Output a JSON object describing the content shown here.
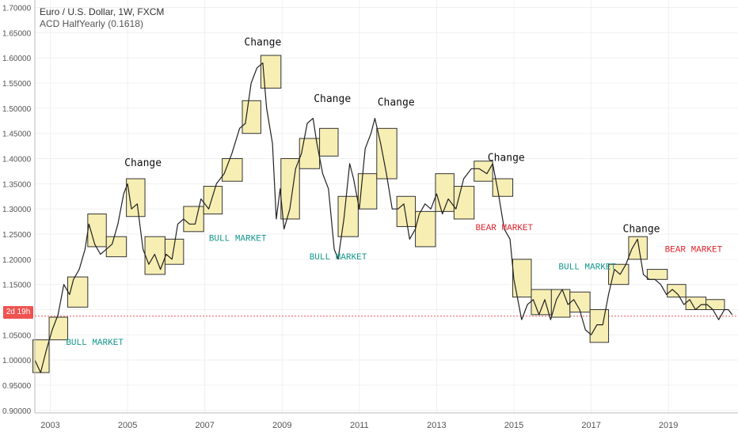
{
  "legend": {
    "title": "Euro / U.S. Dollar, 1W, FXCM",
    "indicator": "ACD HalfYearly (0.1618)"
  },
  "countdown": "2d 19h",
  "colors": {
    "box_fill": "#f7eeb4",
    "box_stroke": "#333333",
    "line": "#222222",
    "bull_text": "#12968c",
    "bear_text": "#e0242c",
    "change_text": "#111111",
    "current_line": "#ef5350",
    "grid": "#f0f0f0",
    "axis_text": "#555555"
  },
  "chart_data": {
    "type": "line",
    "title": "Euro / U.S. Dollar, 1W, FXCM",
    "xlim": [
      2002.6,
      2020.8
    ],
    "ylim": [
      0.895,
      1.715
    ],
    "y_ticks": [
      "0.90000",
      "0.95000",
      "1.00000",
      "1.05000",
      "1.10000",
      "1.15000",
      "1.20000",
      "1.25000",
      "1.30000",
      "1.35000",
      "1.40000",
      "1.45000",
      "1.50000",
      "1.55000",
      "1.60000",
      "1.65000",
      "1.70000"
    ],
    "x_ticks": [
      "2003",
      "2005",
      "2007",
      "2009",
      "2011",
      "2013",
      "2015",
      "2017",
      "2019"
    ],
    "current_price": 1.087,
    "series": [
      {
        "x": [
          2002.6,
          2002.75,
          2002.9,
          2003.05,
          2003.2,
          2003.35,
          2003.5,
          2003.6,
          2003.75,
          2003.9,
          2004.0,
          2004.15,
          2004.3,
          2004.45,
          2004.6,
          2004.75,
          2004.9,
          2005.0,
          2005.1,
          2005.25,
          2005.4,
          2005.55,
          2005.7,
          2005.85,
          2006.0,
          2006.15,
          2006.3,
          2006.45,
          2006.6,
          2006.75,
          2006.9,
          2007.1,
          2007.3,
          2007.5,
          2007.7,
          2007.9,
          2008.05,
          2008.2,
          2008.35,
          2008.5,
          2008.6,
          2008.75,
          2008.85,
          2008.95,
          2009.05,
          2009.2,
          2009.35,
          2009.5,
          2009.65,
          2009.8,
          2009.9,
          2010.05,
          2010.2,
          2010.35,
          2010.45,
          2010.6,
          2010.75,
          2010.85,
          2011.0,
          2011.15,
          2011.3,
          2011.4,
          2011.55,
          2011.7,
          2011.85,
          2012.0,
          2012.15,
          2012.3,
          2012.45,
          2012.55,
          2012.7,
          2012.85,
          2013.0,
          2013.15,
          2013.3,
          2013.5,
          2013.7,
          2013.9,
          2014.1,
          2014.3,
          2014.45,
          2014.6,
          2014.75,
          2014.9,
          2015.0,
          2015.1,
          2015.2,
          2015.35,
          2015.5,
          2015.65,
          2015.8,
          2015.95,
          2016.1,
          2016.25,
          2016.4,
          2016.55,
          2016.7,
          2016.85,
          2017.0,
          2017.15,
          2017.3,
          2017.45,
          2017.6,
          2017.75,
          2017.9,
          2018.05,
          2018.2,
          2018.35,
          2018.5,
          2018.65,
          2018.8,
          2018.95,
          2019.1,
          2019.25,
          2019.4,
          2019.55,
          2019.7,
          2019.85,
          2020.0,
          2020.15,
          2020.3,
          2020.45,
          2020.55,
          2020.65
        ],
        "y": [
          1.0,
          0.975,
          1.02,
          1.06,
          1.09,
          1.15,
          1.13,
          1.16,
          1.18,
          1.22,
          1.27,
          1.23,
          1.21,
          1.22,
          1.23,
          1.27,
          1.33,
          1.35,
          1.3,
          1.31,
          1.22,
          1.19,
          1.21,
          1.18,
          1.21,
          1.2,
          1.27,
          1.28,
          1.27,
          1.27,
          1.32,
          1.3,
          1.35,
          1.37,
          1.41,
          1.46,
          1.47,
          1.55,
          1.58,
          1.59,
          1.5,
          1.43,
          1.28,
          1.34,
          1.26,
          1.3,
          1.38,
          1.41,
          1.47,
          1.48,
          1.43,
          1.37,
          1.34,
          1.22,
          1.2,
          1.28,
          1.39,
          1.36,
          1.3,
          1.42,
          1.45,
          1.48,
          1.43,
          1.37,
          1.3,
          1.3,
          1.31,
          1.24,
          1.26,
          1.29,
          1.31,
          1.3,
          1.33,
          1.29,
          1.32,
          1.3,
          1.36,
          1.38,
          1.38,
          1.37,
          1.39,
          1.33,
          1.26,
          1.24,
          1.16,
          1.12,
          1.08,
          1.11,
          1.12,
          1.09,
          1.12,
          1.08,
          1.12,
          1.14,
          1.11,
          1.12,
          1.1,
          1.06,
          1.05,
          1.07,
          1.07,
          1.13,
          1.18,
          1.17,
          1.19,
          1.22,
          1.24,
          1.17,
          1.16,
          1.16,
          1.15,
          1.13,
          1.14,
          1.13,
          1.11,
          1.12,
          1.1,
          1.11,
          1.11,
          1.1,
          1.08,
          1.1,
          1.1,
          1.09
        ]
      }
    ],
    "boxes": [
      {
        "x0": 2002.55,
        "x1": 2002.97,
        "y0": 0.975,
        "y1": 1.04
      },
      {
        "x0": 2002.97,
        "x1": 2003.45,
        "y0": 1.04,
        "y1": 1.085
      },
      {
        "x0": 2003.45,
        "x1": 2003.97,
        "y0": 1.105,
        "y1": 1.165
      },
      {
        "x0": 2003.97,
        "x1": 2004.45,
        "y0": 1.225,
        "y1": 1.29
      },
      {
        "x0": 2004.45,
        "x1": 2004.97,
        "y0": 1.205,
        "y1": 1.245
      },
      {
        "x0": 2004.97,
        "x1": 2005.45,
        "y0": 1.285,
        "y1": 1.36
      },
      {
        "x0": 2005.45,
        "x1": 2005.97,
        "y0": 1.17,
        "y1": 1.245
      },
      {
        "x0": 2005.97,
        "x1": 2006.45,
        "y0": 1.19,
        "y1": 1.24
      },
      {
        "x0": 2006.45,
        "x1": 2006.97,
        "y0": 1.255,
        "y1": 1.305
      },
      {
        "x0": 2006.97,
        "x1": 2007.45,
        "y0": 1.29,
        "y1": 1.345
      },
      {
        "x0": 2007.45,
        "x1": 2007.97,
        "y0": 1.355,
        "y1": 1.4
      },
      {
        "x0": 2007.97,
        "x1": 2008.45,
        "y0": 1.45,
        "y1": 1.515
      },
      {
        "x0": 2008.45,
        "x1": 2008.97,
        "y0": 1.54,
        "y1": 1.605
      },
      {
        "x0": 2008.97,
        "x1": 2009.45,
        "y0": 1.28,
        "y1": 1.4
      },
      {
        "x0": 2009.45,
        "x1": 2009.97,
        "y0": 1.38,
        "y1": 1.44
      },
      {
        "x0": 2009.97,
        "x1": 2010.45,
        "y0": 1.405,
        "y1": 1.46
      },
      {
        "x0": 2010.45,
        "x1": 2010.97,
        "y0": 1.245,
        "y1": 1.325
      },
      {
        "x0": 2010.97,
        "x1": 2011.45,
        "y0": 1.3,
        "y1": 1.37
      },
      {
        "x0": 2011.45,
        "x1": 2011.97,
        "y0": 1.36,
        "y1": 1.46
      },
      {
        "x0": 2011.97,
        "x1": 2012.45,
        "y0": 1.265,
        "y1": 1.325
      },
      {
        "x0": 2012.45,
        "x1": 2012.97,
        "y0": 1.225,
        "y1": 1.295
      },
      {
        "x0": 2012.97,
        "x1": 2013.45,
        "y0": 1.295,
        "y1": 1.37
      },
      {
        "x0": 2013.45,
        "x1": 2013.97,
        "y0": 1.28,
        "y1": 1.345
      },
      {
        "x0": 2013.97,
        "x1": 2014.45,
        "y0": 1.355,
        "y1": 1.395
      },
      {
        "x0": 2014.45,
        "x1": 2014.97,
        "y0": 1.325,
        "y1": 1.36
      },
      {
        "x0": 2014.97,
        "x1": 2015.45,
        "y0": 1.125,
        "y1": 1.2
      },
      {
        "x0": 2015.45,
        "x1": 2015.97,
        "y0": 1.09,
        "y1": 1.14
      },
      {
        "x0": 2015.97,
        "x1": 2016.45,
        "y0": 1.085,
        "y1": 1.14
      },
      {
        "x0": 2016.45,
        "x1": 2016.97,
        "y0": 1.095,
        "y1": 1.135
      },
      {
        "x0": 2016.97,
        "x1": 2017.45,
        "y0": 1.035,
        "y1": 1.1
      },
      {
        "x0": 2017.45,
        "x1": 2017.97,
        "y0": 1.15,
        "y1": 1.19
      },
      {
        "x0": 2017.97,
        "x1": 2018.45,
        "y0": 1.2,
        "y1": 1.245
      },
      {
        "x0": 2018.45,
        "x1": 2018.97,
        "y0": 1.16,
        "y1": 1.18
      },
      {
        "x0": 2018.97,
        "x1": 2019.45,
        "y0": 1.125,
        "y1": 1.15
      },
      {
        "x0": 2019.45,
        "x1": 2019.97,
        "y0": 1.1,
        "y1": 1.125
      },
      {
        "x0": 2019.97,
        "x1": 2020.45,
        "y0": 1.1,
        "y1": 1.12
      }
    ],
    "annotations": [
      {
        "text": "Change",
        "x": 2005.4,
        "y": 1.385,
        "kind": "change"
      },
      {
        "text": "Change",
        "x": 2008.5,
        "y": 1.625,
        "kind": "change"
      },
      {
        "text": "Change",
        "x": 2010.3,
        "y": 1.512,
        "kind": "change"
      },
      {
        "text": "Change",
        "x": 2011.95,
        "y": 1.505,
        "kind": "change"
      },
      {
        "text": "Change",
        "x": 2014.8,
        "y": 1.395,
        "kind": "change"
      },
      {
        "text": "Change",
        "x": 2018.3,
        "y": 1.254,
        "kind": "change"
      },
      {
        "text": "BULL MARKET",
        "x": 2004.15,
        "y": 1.03,
        "kind": "bull"
      },
      {
        "text": "BULL MARKET",
        "x": 2007.85,
        "y": 1.237,
        "kind": "bull"
      },
      {
        "text": "BULL MARKET",
        "x": 2010.45,
        "y": 1.2,
        "kind": "bull"
      },
      {
        "text": "BULL MARKET",
        "x": 2016.9,
        "y": 1.18,
        "kind": "bull"
      },
      {
        "text": "BEAR MARKET",
        "x": 2014.75,
        "y": 1.258,
        "kind": "bear"
      },
      {
        "text": "BEAR MARKET",
        "x": 2019.65,
        "y": 1.215,
        "kind": "bear"
      }
    ]
  }
}
